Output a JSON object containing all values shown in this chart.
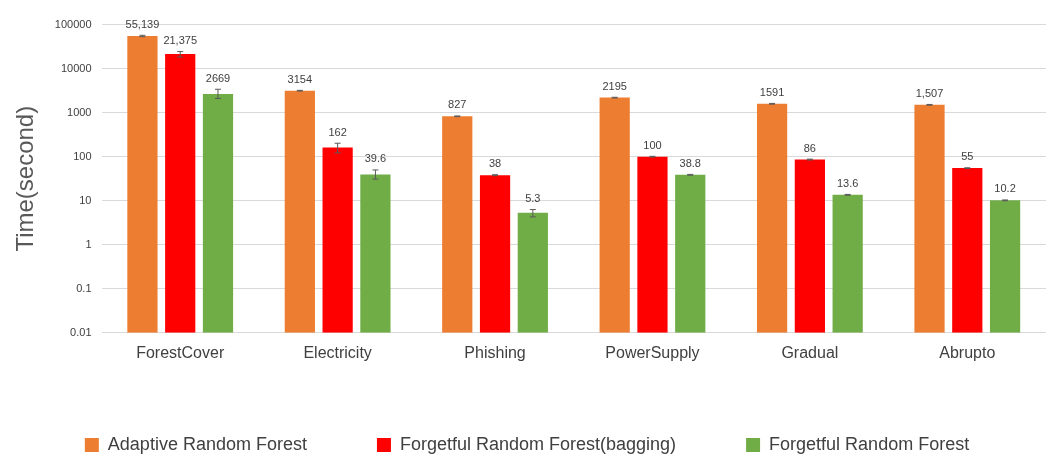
{
  "chart_data": {
    "type": "bar",
    "ylabel": "Time(second)",
    "categories": [
      "ForestCover",
      "Electricity",
      "Phishing",
      "PowerSupply",
      "Gradual",
      "Abrupto"
    ],
    "series": [
      {
        "name": "Adaptive Random Forest",
        "color": "#ed7d31",
        "values": [
          55139,
          3154,
          827,
          2195,
          1591,
          1507
        ],
        "value_labels": [
          "55,139",
          "3154",
          "827",
          "2195",
          "1591",
          "1,507"
        ],
        "errors": [
          2000,
          60,
          15,
          40,
          30,
          30
        ]
      },
      {
        "name": "Forgetful Random Forest(bagging)",
        "color": "#ff0000",
        "values": [
          21375,
          162,
          38,
          100,
          86,
          55
        ],
        "value_labels": [
          "21,375",
          "162",
          "38",
          "100",
          "86",
          "55"
        ],
        "errors": [
          3000,
          40,
          1,
          2,
          2,
          1
        ]
      },
      {
        "name": "Forgetful Random Forest",
        "color": "#70ad47",
        "values": [
          2669,
          39.6,
          5.3,
          38.8,
          13.6,
          10.2
        ],
        "value_labels": [
          "2669",
          "39.6",
          "5.3",
          "38.8",
          "13.6",
          "10.2"
        ],
        "errors": [
          [
            2100,
            3400
          ],
          [
            31,
            50
          ],
          1,
          0.8,
          0.3,
          0.2
        ]
      }
    ],
    "log": "y",
    "ylim": [
      0.01,
      100000
    ],
    "yticks": [
      0.01,
      0.1,
      1,
      10,
      100,
      1000,
      10000,
      100000
    ],
    "grid": "y",
    "legend": "bottom"
  }
}
